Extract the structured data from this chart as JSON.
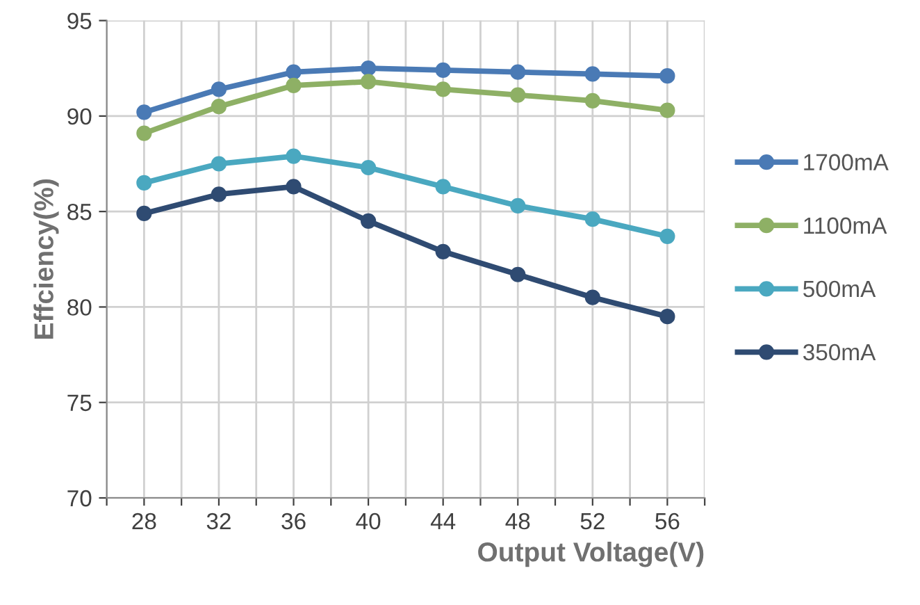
{
  "chart_data": {
    "type": "line",
    "xlabel": "Output Voltage(V)",
    "ylabel": "Effciency(%)",
    "x": [
      28,
      32,
      36,
      40,
      44,
      48,
      52,
      56
    ],
    "series": [
      {
        "name": "1700mA",
        "color": "#4a7ab5",
        "values": [
          90.2,
          91.4,
          92.3,
          92.5,
          92.4,
          92.3,
          92.2,
          92.1
        ]
      },
      {
        "name": "1100mA",
        "color": "#8eb065",
        "values": [
          89.1,
          90.5,
          91.6,
          91.8,
          91.4,
          91.1,
          90.8,
          90.3
        ]
      },
      {
        "name": "500mA",
        "color": "#4aa8c0",
        "values": [
          86.5,
          87.5,
          87.9,
          87.3,
          86.3,
          85.3,
          84.6,
          83.7
        ]
      },
      {
        "name": "350mA",
        "color": "#2f4b72",
        "values": [
          84.9,
          85.9,
          86.3,
          84.5,
          82.9,
          81.7,
          80.5,
          79.5
        ]
      }
    ],
    "xlim": [
      26,
      58
    ],
    "xticks": [
      {
        "value": 26,
        "label": null
      },
      28,
      {
        "value": 30,
        "label": null
      },
      32,
      {
        "value": 34,
        "label": null
      },
      36,
      {
        "value": 38,
        "label": null
      },
      40,
      {
        "value": 42,
        "label": null
      },
      44,
      {
        "value": 46,
        "label": null
      },
      48,
      {
        "value": 50,
        "label": null
      },
      52,
      {
        "value": 54,
        "label": null
      },
      56,
      {
        "value": 58,
        "label": null
      }
    ],
    "ylim": [
      70,
      95
    ],
    "yticks": [
      70,
      75,
      80,
      85,
      90,
      95
    ],
    "grid": true,
    "legend": "right",
    "marker": "circle",
    "line_style": "solid"
  }
}
